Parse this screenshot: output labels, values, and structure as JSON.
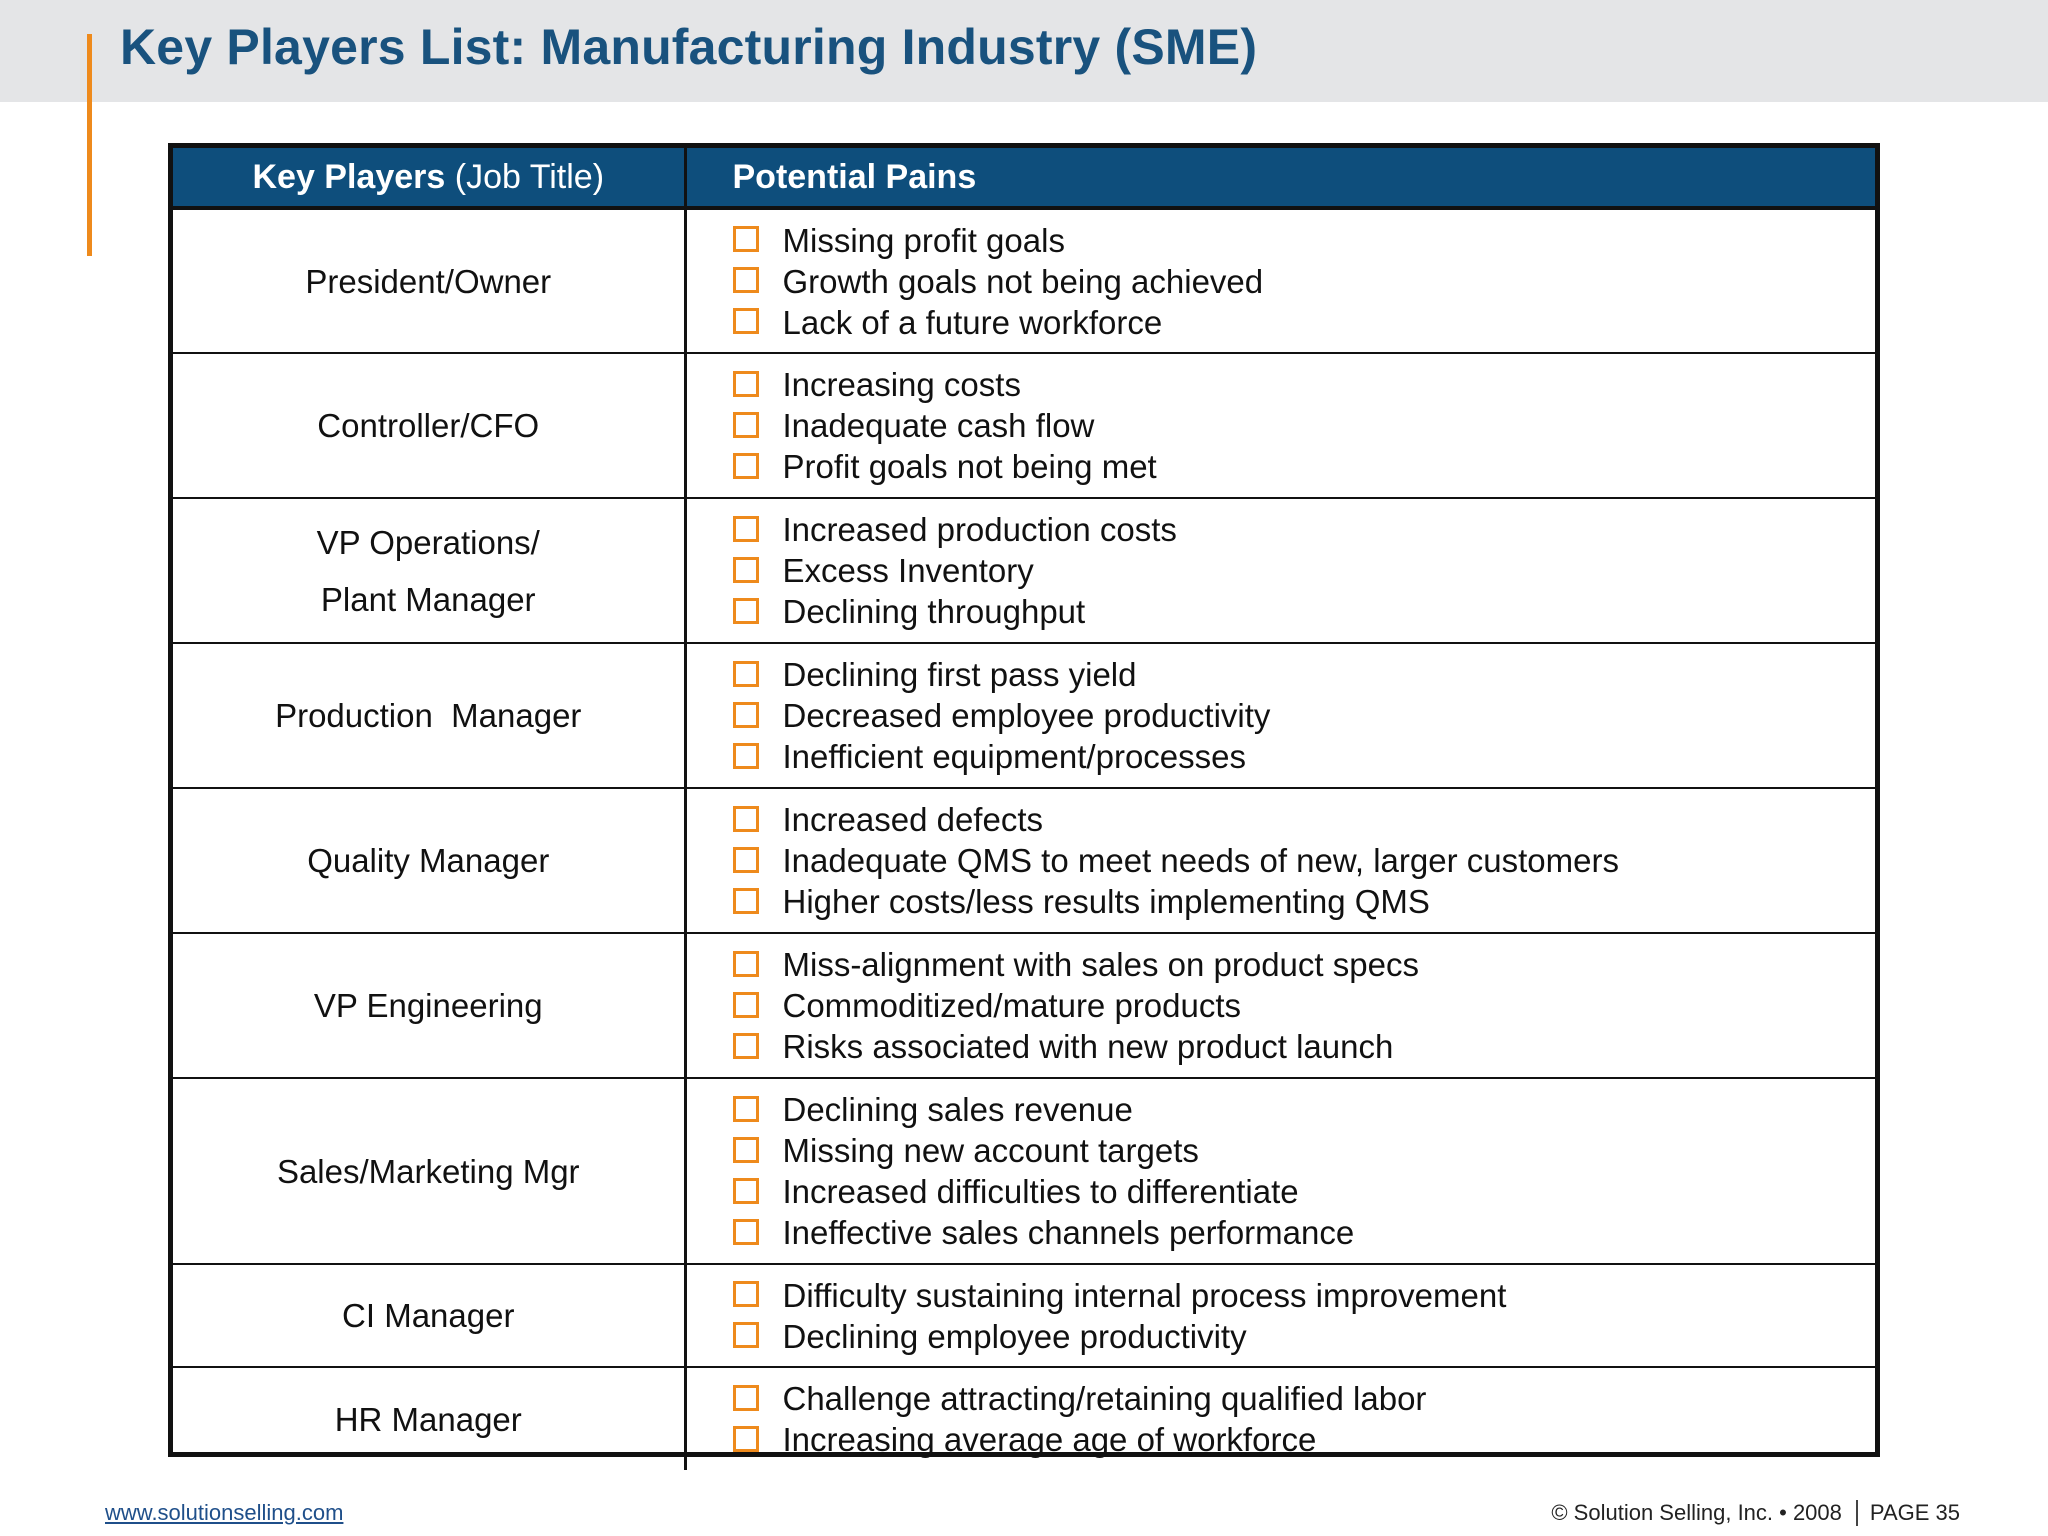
{
  "title": "Key Players List: Manufacturing Industry (SME)",
  "table": {
    "header_key_bold": "Key Players",
    "header_key_normal": "(Job Title)",
    "header_pains": "Potential Pains"
  },
  "rows": [
    {
      "role_lines": [
        "President/Owner"
      ],
      "pains": [
        "Missing profit goals",
        "Growth goals not being achieved",
        "Lack of a future workforce"
      ]
    },
    {
      "role_lines": [
        "Controller/CFO"
      ],
      "pains": [
        "Increasing costs",
        "Inadequate cash flow",
        "Profit goals not being met"
      ]
    },
    {
      "role_lines": [
        "VP Operations/",
        "Plant Manager"
      ],
      "pains": [
        "Increased production costs",
        "Excess Inventory",
        "Declining throughput"
      ]
    },
    {
      "role_lines": [
        "Production  Manager"
      ],
      "pains": [
        "Declining first pass yield",
        "Decreased employee productivity",
        "Inefficient equipment/processes"
      ]
    },
    {
      "role_lines": [
        "Quality Manager"
      ],
      "pains": [
        "Increased defects",
        "Inadequate QMS to meet needs of new, larger customers",
        "Higher costs/less results implementing QMS"
      ]
    },
    {
      "role_lines": [
        "VP Engineering"
      ],
      "pains": [
        "Miss-alignment with sales on product specs",
        "Commoditized/mature products",
        "Risks associated with new product launch"
      ]
    },
    {
      "role_lines": [
        "Sales/Marketing Mgr"
      ],
      "pains": [
        "Declining sales revenue",
        "Missing new account targets",
        "Increased difficulties to differentiate",
        "Ineffective sales channels performance"
      ]
    },
    {
      "role_lines": [
        "CI Manager"
      ],
      "pains": [
        "Difficulty sustaining internal process improvement",
        "Declining employee productivity"
      ]
    },
    {
      "role_lines": [
        "HR Manager"
      ],
      "pains": [
        "Challenge attracting/retaining qualified labor",
        "Increasing average age of workforce"
      ]
    }
  ],
  "footer": {
    "link": "www.solutionselling.com",
    "copyright": "© Solution Selling, Inc. • 2008",
    "page": "PAGE 35"
  },
  "colors": {
    "title": "#19527e",
    "header_bg": "#0e4e7c",
    "accent": "#ee8a1c"
  }
}
